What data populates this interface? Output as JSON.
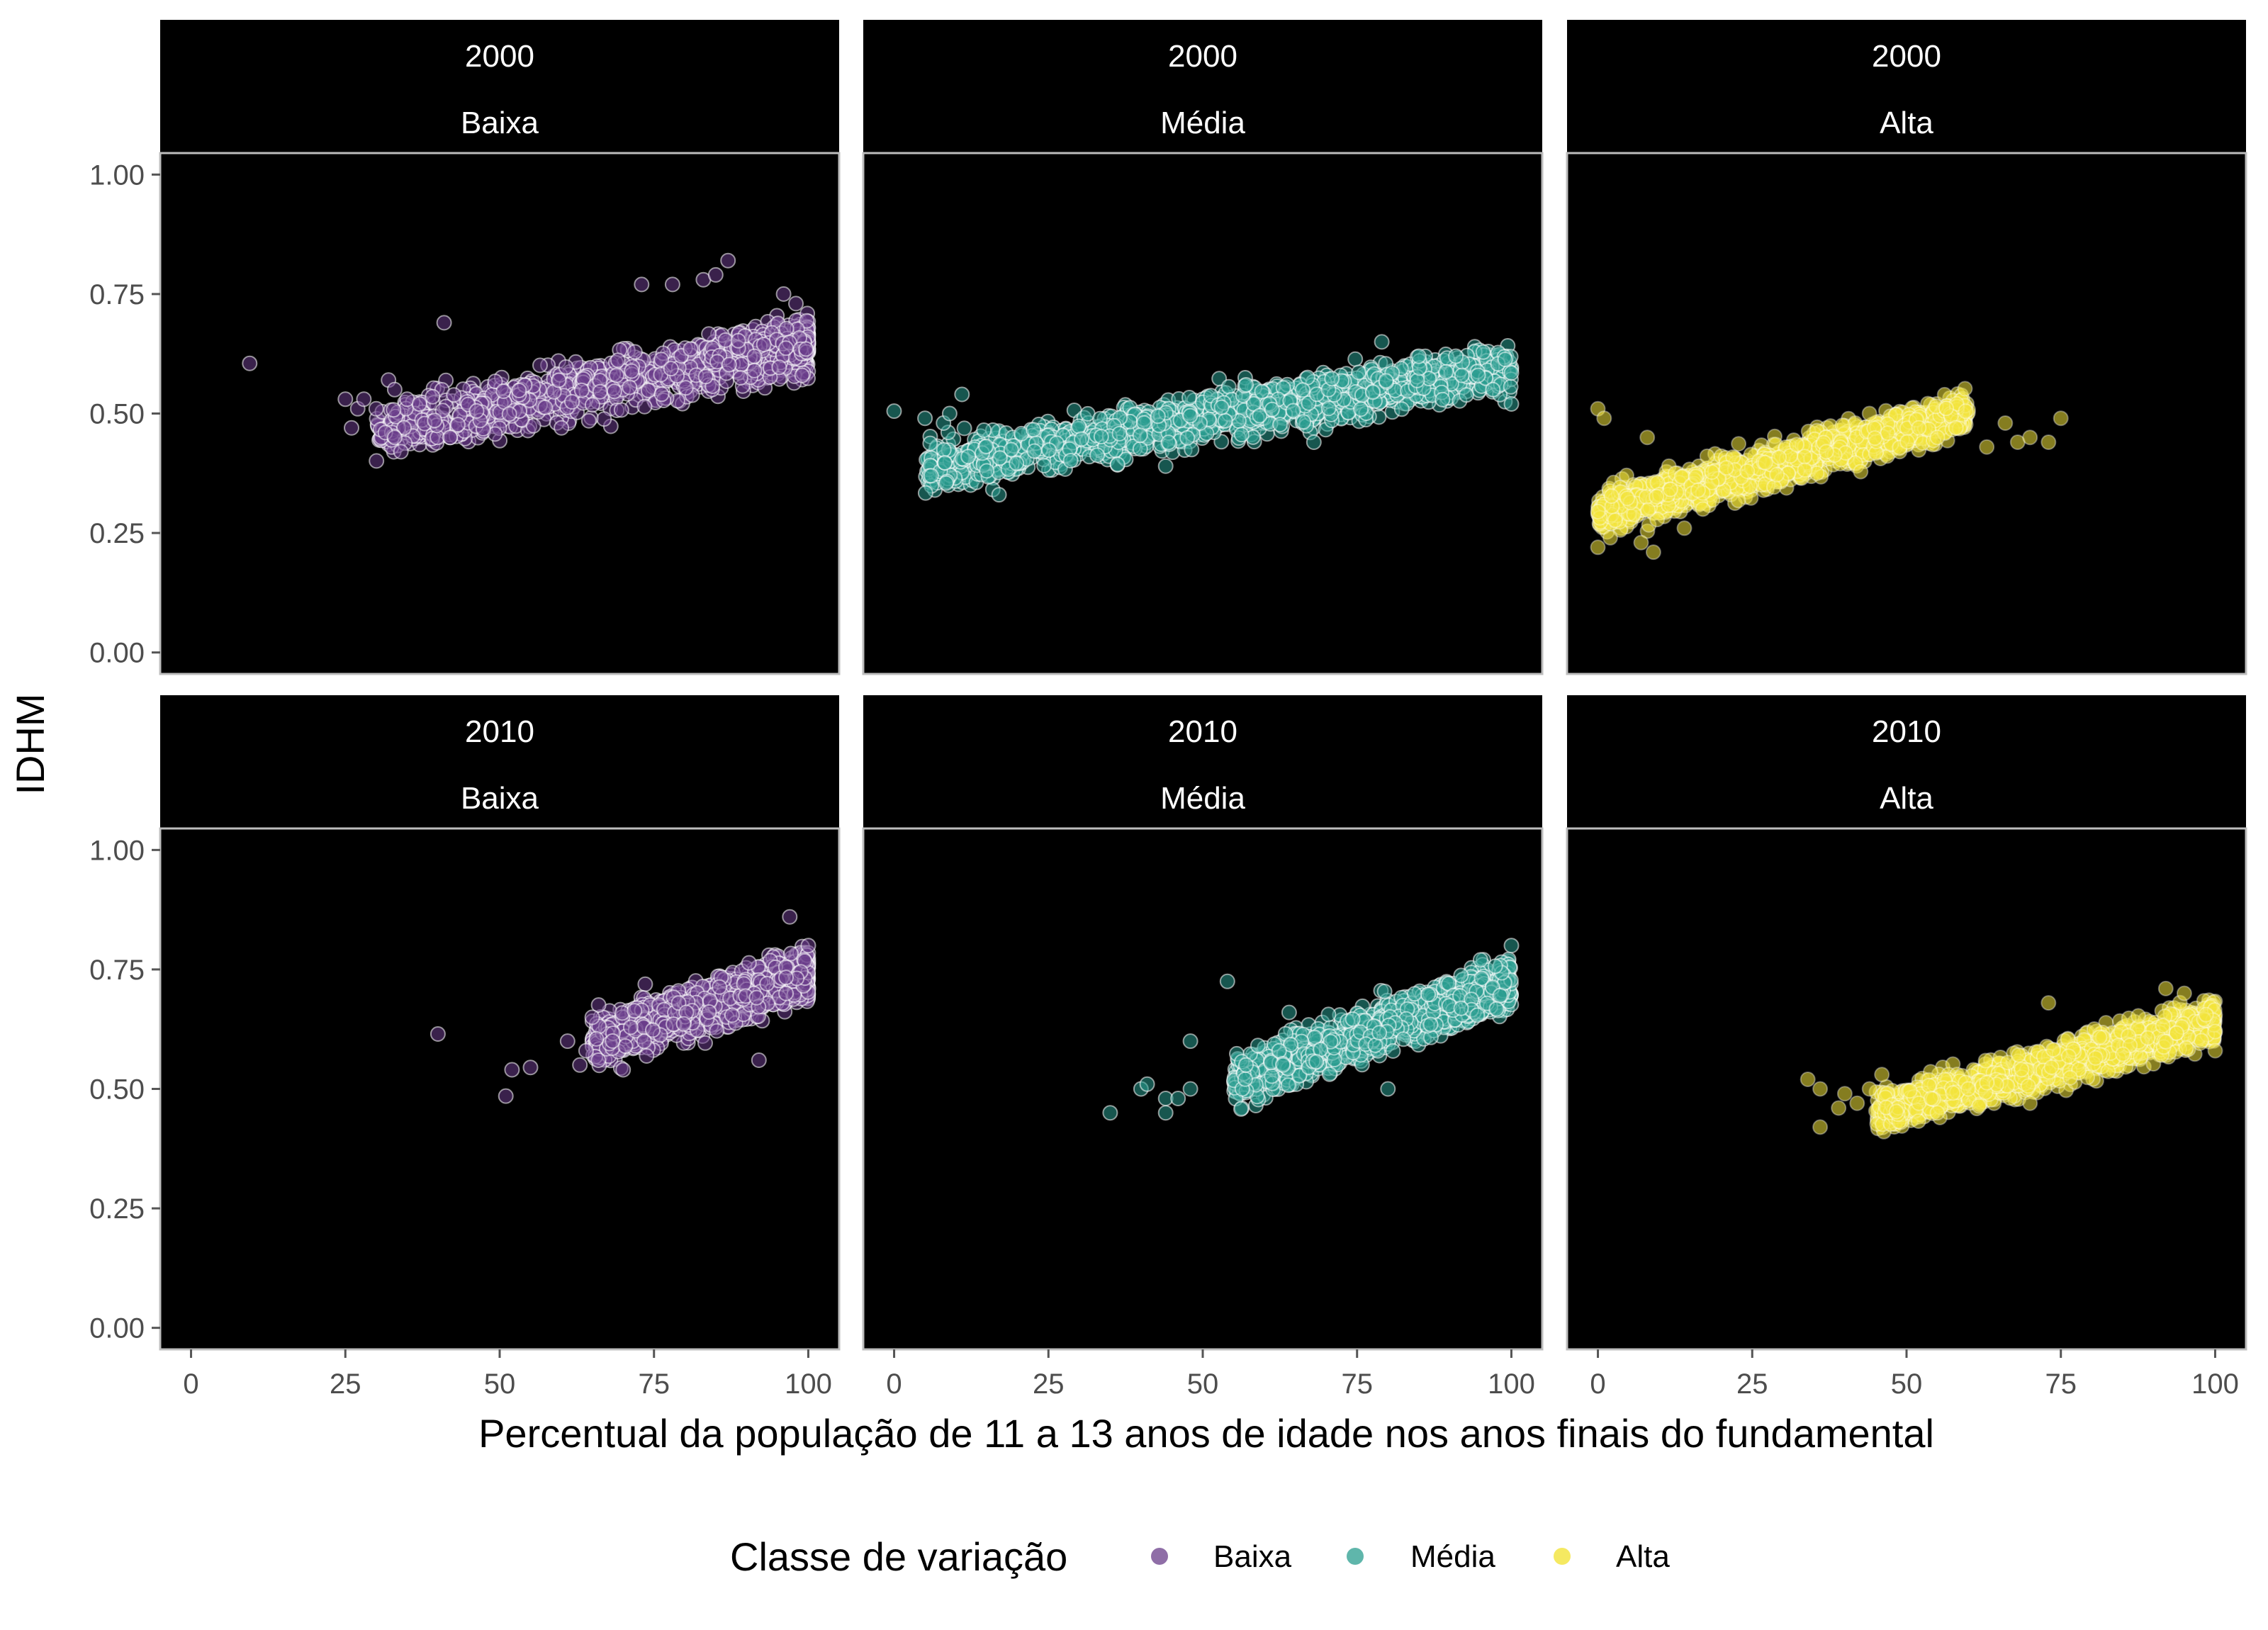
{
  "chart_data": {
    "type": "scatter",
    "facet_rows": [
      "2000",
      "2010"
    ],
    "facet_cols": [
      "Baixa",
      "Média",
      "Alta"
    ],
    "xlabel": "Percentual da população de 11 a 13 anos de idade nos anos finais do fundamental",
    "ylabel": "IDHM",
    "xlim": [
      -5,
      105
    ],
    "ylim": [
      -0.045,
      1.045
    ],
    "x_ticks": [
      "0",
      "25",
      "50",
      "75",
      "100"
    ],
    "y_ticks": [
      "0.00",
      "0.25",
      "0.50",
      "0.75",
      "1.00"
    ],
    "panel_background": "#000000",
    "grid": false,
    "legend": {
      "title": "Classe de variação",
      "position": "bottom",
      "entries": [
        "Baixa",
        "Média",
        "Alta"
      ]
    },
    "colors": {
      "Baixa": "#6a3d8a",
      "Média": "#2a9d8f",
      "Alta": "#f2e43a",
      "point_outline": "#ffffff"
    },
    "panels": [
      {
        "row": "2000",
        "col": "Baixa",
        "cloud": {
          "x_range": [
            30,
            100
          ],
          "center": [
            82,
            0.6
          ],
          "slope": 0.0026,
          "x_skew": 1.6,
          "spread": 0.04,
          "n": 1300
        },
        "points": [
          [
            9.5,
            0.605
          ],
          [
            25,
            0.53
          ],
          [
            26,
            0.47
          ],
          [
            27,
            0.51
          ],
          [
            28,
            0.53
          ],
          [
            30,
            0.51
          ],
          [
            32,
            0.57
          ],
          [
            33,
            0.55
          ],
          [
            33,
            0.45
          ],
          [
            34,
            0.42
          ],
          [
            35,
            0.53
          ],
          [
            37,
            0.52
          ],
          [
            41,
            0.69
          ],
          [
            42,
            0.45
          ],
          [
            60,
            0.47
          ],
          [
            73,
            0.77
          ],
          [
            78,
            0.77
          ],
          [
            83,
            0.78
          ],
          [
            85,
            0.79
          ],
          [
            87,
            0.82
          ],
          [
            96,
            0.75
          ],
          [
            98,
            0.73
          ],
          [
            99,
            0.58
          ]
        ]
      },
      {
        "row": "2000",
        "col": "Média",
        "cloud": {
          "x_range": [
            5,
            100
          ],
          "center": [
            55,
            0.5
          ],
          "slope": 0.0022,
          "x_skew": 1.0,
          "spread": 0.035,
          "n": 1500
        },
        "points": [
          [
            0,
            0.505
          ],
          [
            5,
            0.49
          ],
          [
            8,
            0.48
          ],
          [
            9,
            0.5
          ],
          [
            11,
            0.54
          ],
          [
            12,
            0.41
          ],
          [
            17,
            0.33
          ],
          [
            6,
            0.37
          ],
          [
            15,
            0.38
          ],
          [
            44,
            0.39
          ],
          [
            57,
            0.56
          ],
          [
            68,
            0.44
          ],
          [
            79,
            0.65
          ],
          [
            85,
            0.62
          ],
          [
            91,
            0.62
          ],
          [
            92,
            0.58
          ],
          [
            97,
            0.55
          ],
          [
            100,
            0.52
          ],
          [
            100,
            0.585
          ]
        ]
      },
      {
        "row": "2000",
        "col": "Alta",
        "cloud": {
          "x_range": [
            0,
            60
          ],
          "center": [
            22,
            0.37
          ],
          "slope": 0.0035,
          "x_skew": 0.55,
          "spread": 0.03,
          "n": 1500
        },
        "points": [
          [
            0,
            0.51
          ],
          [
            1,
            0.49
          ],
          [
            0,
            0.22
          ],
          [
            2,
            0.24
          ],
          [
            7,
            0.23
          ],
          [
            9,
            0.21
          ],
          [
            8,
            0.45
          ],
          [
            14,
            0.26
          ],
          [
            17,
            0.3
          ],
          [
            37,
            0.42
          ],
          [
            44,
            0.5
          ],
          [
            52,
            0.47
          ],
          [
            55,
            0.45
          ],
          [
            58,
            0.47
          ],
          [
            63,
            0.43
          ],
          [
            66,
            0.48
          ],
          [
            68,
            0.44
          ],
          [
            70,
            0.45
          ],
          [
            75,
            0.49
          ],
          [
            73,
            0.44
          ]
        ]
      },
      {
        "row": "2010",
        "col": "Baixa",
        "cloud": {
          "x_range": [
            65,
            100
          ],
          "center": [
            90,
            0.7
          ],
          "slope": 0.004,
          "x_skew": 1.4,
          "spread": 0.035,
          "n": 1400
        },
        "points": [
          [
            40,
            0.615
          ],
          [
            51,
            0.485
          ],
          [
            52,
            0.54
          ],
          [
            55,
            0.545
          ],
          [
            61,
            0.6
          ],
          [
            63,
            0.55
          ],
          [
            64,
            0.58
          ],
          [
            65,
            0.65
          ],
          [
            66,
            0.56
          ],
          [
            70,
            0.54
          ],
          [
            92,
            0.56
          ],
          [
            97,
            0.86
          ],
          [
            100,
            0.8
          ]
        ]
      },
      {
        "row": "2010",
        "col": "Média",
        "cloud": {
          "x_range": [
            55,
            100
          ],
          "center": [
            82,
            0.64
          ],
          "slope": 0.0045,
          "x_skew": 1.1,
          "spread": 0.035,
          "n": 1500
        },
        "points": [
          [
            35,
            0.45
          ],
          [
            40,
            0.5
          ],
          [
            41,
            0.51
          ],
          [
            44,
            0.48
          ],
          [
            44,
            0.45
          ],
          [
            46,
            0.48
          ],
          [
            48,
            0.5
          ],
          [
            48,
            0.6
          ],
          [
            54,
            0.725
          ],
          [
            57,
            0.55
          ],
          [
            63,
            0.55
          ],
          [
            64,
            0.66
          ],
          [
            80,
            0.5
          ],
          [
            95,
            0.77
          ],
          [
            100,
            0.8
          ]
        ]
      },
      {
        "row": "2010",
        "col": "Alta",
        "cloud": {
          "x_range": [
            45,
            100
          ],
          "center": [
            82,
            0.58
          ],
          "slope": 0.0035,
          "x_skew": 1.2,
          "spread": 0.03,
          "n": 1500
        },
        "points": [
          [
            34,
            0.52
          ],
          [
            36,
            0.42
          ],
          [
            36,
            0.5
          ],
          [
            40,
            0.49
          ],
          [
            39,
            0.46
          ],
          [
            42,
            0.47
          ],
          [
            44,
            0.5
          ],
          [
            46,
            0.53
          ],
          [
            52,
            0.47
          ],
          [
            54,
            0.48
          ],
          [
            55,
            0.45
          ],
          [
            60,
            0.5
          ],
          [
            70,
            0.47
          ],
          [
            73,
            0.68
          ],
          [
            92,
            0.71
          ],
          [
            95,
            0.7
          ],
          [
            100,
            0.62
          ],
          [
            100,
            0.58
          ]
        ]
      }
    ]
  }
}
